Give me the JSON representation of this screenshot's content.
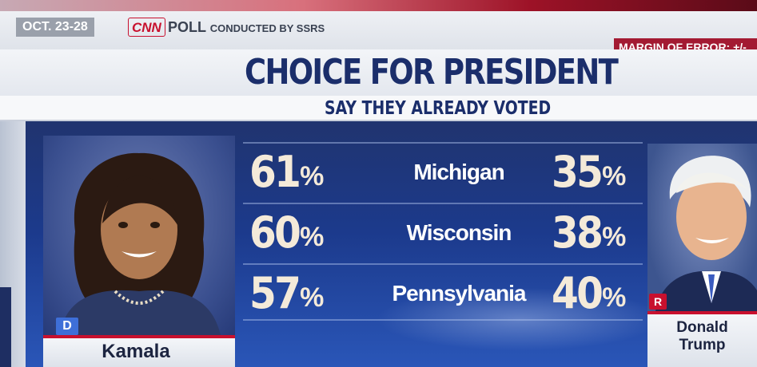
{
  "header": {
    "date": "OCT. 23-28",
    "network": "CNN",
    "poll_label": "POLL",
    "poll_by": "CONDUCTED BY SSRS",
    "margin": "MARGIN OF ERROR: +/-"
  },
  "title": "CHOICE FOR PRESIDENT",
  "subtitle": "SAY THEY ALREADY VOTED",
  "candidates": {
    "left": {
      "name": "Kamala",
      "party": "D",
      "party_color": "#3e6fd8"
    },
    "right": {
      "first": "Donald",
      "last": "Trump",
      "party": "R",
      "party_color": "#c8102e"
    }
  },
  "results": [
    {
      "state": "Michigan",
      "left": "61",
      "right": "35"
    },
    {
      "state": "Wisconsin",
      "left": "60",
      "right": "38"
    },
    {
      "state": "Pennsylvania",
      "left": "57",
      "right": "40"
    }
  ],
  "percent_sign": "%",
  "colors": {
    "accent_red": "#c8102e",
    "title_blue": "#1b2e6b",
    "number_cream": "#f4ead9"
  }
}
